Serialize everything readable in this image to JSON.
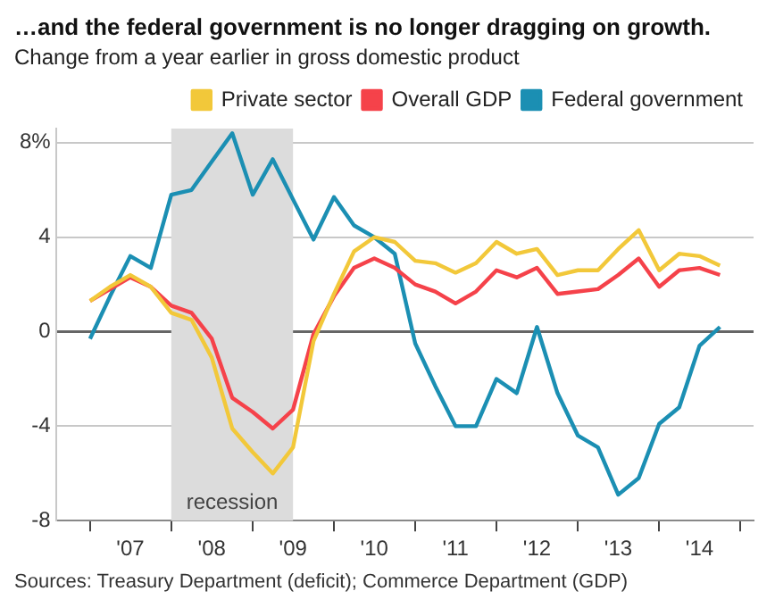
{
  "chart_data": {
    "type": "line",
    "title": "…and the federal government is no longer dragging on growth.",
    "subtitle": "Change from a year earlier in gross domestic product",
    "x": [
      "2007-01",
      "2007-04",
      "2007-07",
      "2007-10",
      "2008-01",
      "2008-04",
      "2008-07",
      "2008-10",
      "2009-01",
      "2009-04",
      "2009-07",
      "2009-10",
      "2010-01",
      "2010-04",
      "2010-07",
      "2010-10",
      "2011-01",
      "2011-04",
      "2011-07",
      "2011-10",
      "2012-01",
      "2012-04",
      "2012-07",
      "2012-10",
      "2013-01",
      "2013-04",
      "2013-07",
      "2013-10",
      "2014-01",
      "2014-04",
      "2014-07",
      "2014-10"
    ],
    "series": [
      {
        "name": "Private sector",
        "color": "#f2c83a",
        "values": [
          1.3,
          1.9,
          2.4,
          1.9,
          0.8,
          0.5,
          -1.1,
          -4.1,
          -5.1,
          -6.0,
          -4.9,
          -0.4,
          1.6,
          3.4,
          4.0,
          3.8,
          3.0,
          2.9,
          2.5,
          2.9,
          3.8,
          3.3,
          3.5,
          2.4,
          2.6,
          2.6,
          3.5,
          4.3,
          2.6,
          3.3,
          3.2,
          2.8
        ]
      },
      {
        "name": "Overall GDP",
        "color": "#f5424a",
        "values": [
          1.3,
          1.8,
          2.3,
          1.9,
          1.1,
          0.8,
          -0.3,
          -2.8,
          -3.4,
          -4.1,
          -3.3,
          -0.1,
          1.5,
          2.7,
          3.1,
          2.7,
          2.0,
          1.7,
          1.2,
          1.7,
          2.6,
          2.3,
          2.7,
          1.6,
          1.7,
          1.8,
          2.4,
          3.1,
          1.9,
          2.6,
          2.7,
          2.4
        ]
      },
      {
        "name": "Federal government",
        "color": "#1b8fb3",
        "values": [
          -0.3,
          1.5,
          3.2,
          2.7,
          5.8,
          6.0,
          7.2,
          8.4,
          5.8,
          7.3,
          5.6,
          3.9,
          5.7,
          4.5,
          4.0,
          3.3,
          -0.5,
          -2.3,
          -4.0,
          -4.0,
          -2.0,
          -2.6,
          0.2,
          -2.6,
          -4.4,
          -4.9,
          -6.9,
          -6.2,
          -3.9,
          -3.2,
          -0.6,
          0.2
        ]
      }
    ],
    "xlim": [
      "2006-08",
      "2015-03"
    ],
    "xticks": [
      {
        "value": "2007-01",
        "label": null
      },
      {
        "value": "2007-07",
        "label": "'07"
      },
      {
        "value": "2008-01",
        "label": null
      },
      {
        "value": "2008-07",
        "label": "'08"
      },
      {
        "value": "2009-01",
        "label": null
      },
      {
        "value": "2009-07",
        "label": "'09"
      },
      {
        "value": "2010-01",
        "label": null
      },
      {
        "value": "2010-07",
        "label": "'10"
      },
      {
        "value": "2011-01",
        "label": null
      },
      {
        "value": "2011-07",
        "label": "'11"
      },
      {
        "value": "2012-01",
        "label": null
      },
      {
        "value": "2012-07",
        "label": "'12"
      },
      {
        "value": "2013-01",
        "label": null
      },
      {
        "value": "2013-07",
        "label": "'13"
      },
      {
        "value": "2014-01",
        "label": null
      },
      {
        "value": "2014-07",
        "label": "'14"
      },
      {
        "value": "2015-01",
        "label": null
      }
    ],
    "ylim": [
      -8,
      8.6
    ],
    "yticks": [
      -8,
      -4,
      0,
      4,
      {
        "value": 8,
        "label": "8%"
      }
    ],
    "bands": [
      {
        "axis": "x",
        "from": "2008-01",
        "to": "2009-07",
        "label": "recession",
        "color": "#dcdcdc"
      }
    ],
    "annotations": [
      "Sources: Treasury Department (deficit); Commerce Department (GDP)"
    ],
    "grid": "y",
    "legend": "top right",
    "marker": "none",
    "line_style": "solid"
  }
}
